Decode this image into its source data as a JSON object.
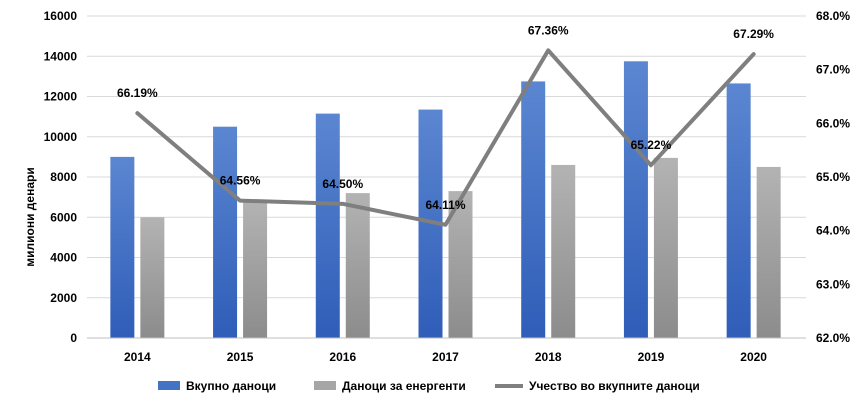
{
  "chart_data": {
    "type": "bar",
    "categories": [
      "2014",
      "2015",
      "2016",
      "2017",
      "2018",
      "2019",
      "2020"
    ],
    "series": [
      {
        "name": "Вкупно даноци",
        "type": "bar",
        "axis": "left",
        "color": "#4472C4",
        "values": [
          9000,
          10500,
          11150,
          11350,
          12750,
          13750,
          12650
        ]
      },
      {
        "name": "Даноци за енергенти",
        "type": "bar",
        "axis": "left",
        "color": "#A6A6A6",
        "values": [
          6000,
          6800,
          7200,
          7300,
          8600,
          8950,
          8500
        ]
      },
      {
        "name": "Учество во вкупните даноци",
        "type": "line",
        "axis": "right",
        "color": "#7F7F7F",
        "values": [
          66.19,
          64.56,
          64.5,
          64.11,
          67.36,
          65.22,
          67.29
        ],
        "labels": [
          "66.19%",
          "64.56%",
          "64.50%",
          "64.11%",
          "67.36%",
          "65.22%",
          "67.29%"
        ]
      }
    ],
    "ylabel": "милиони денари",
    "ylim": [
      0,
      16000
    ],
    "yticks": [
      "0",
      "2000",
      "4000",
      "6000",
      "8000",
      "10000",
      "12000",
      "14000",
      "16000"
    ],
    "y2lim": [
      62,
      68
    ],
    "y2ticks": [
      "62.0%",
      "63.0%",
      "64.0%",
      "65.0%",
      "66.0%",
      "67.0%",
      "68.0%"
    ],
    "grid": true,
    "legend": "bottom"
  }
}
